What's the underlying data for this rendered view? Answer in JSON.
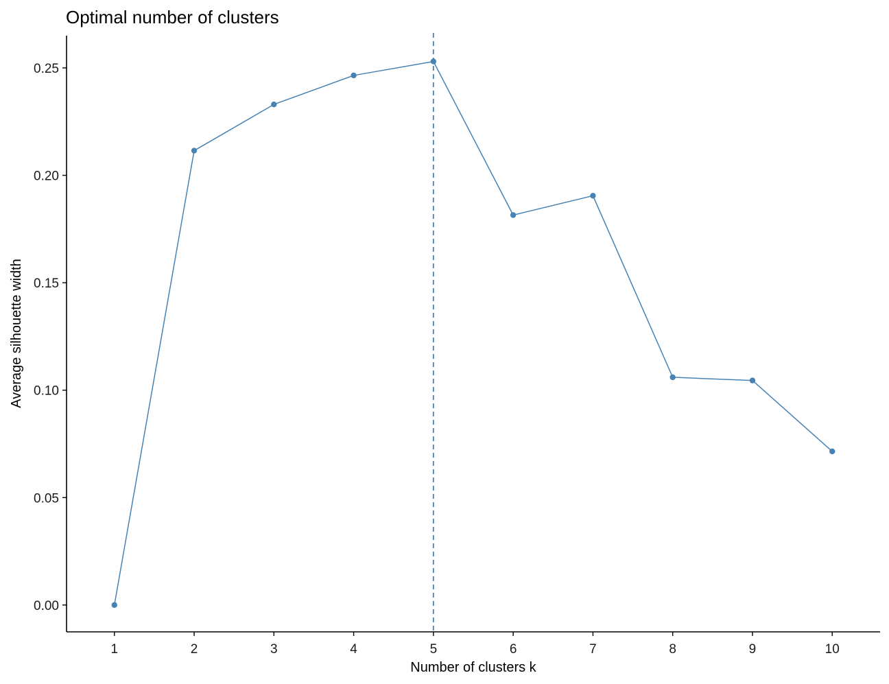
{
  "chart_data": {
    "type": "line",
    "title": "Optimal number of clusters",
    "xlabel": "Number of clusters k",
    "ylabel": "Average silhouette width",
    "categories": [
      "1",
      "2",
      "3",
      "4",
      "5",
      "6",
      "7",
      "8",
      "9",
      "10"
    ],
    "series": [
      {
        "values": [
          0.0,
          0.2115,
          0.233,
          0.2465,
          0.253,
          0.1815,
          0.1905,
          0.106,
          0.1045,
          0.0715
        ]
      }
    ],
    "ylim": [
      -0.0125,
      0.265
    ],
    "yticks": [
      0.0,
      0.05,
      0.1,
      0.15,
      0.2,
      0.25
    ],
    "ytick_labels": [
      "0.00",
      "0.05",
      "0.10",
      "0.15",
      "0.20",
      "0.25"
    ],
    "optimal_k": "5",
    "grid": false,
    "legend": "none",
    "colors": {
      "line": "#4682b4",
      "points": "#4682b4",
      "reference_line": "#4682b4",
      "axis": "#000000"
    }
  }
}
